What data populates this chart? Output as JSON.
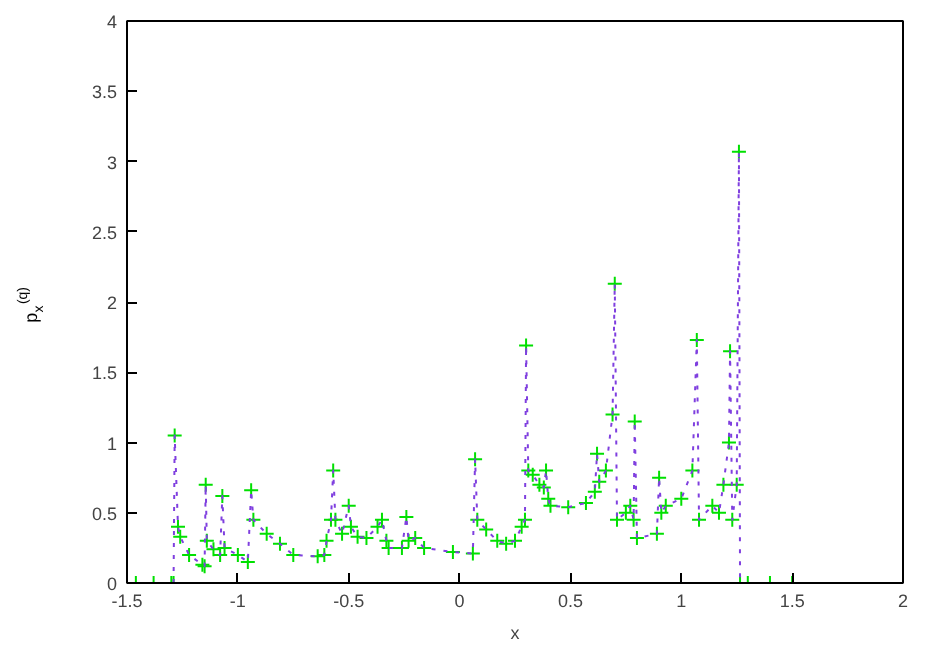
{
  "chart_data": {
    "type": "line",
    "xlabel": "x",
    "ylabel": "p$_{x}$$^{(q)}$",
    "x": [
      -1.46,
      -1.38,
      -1.3,
      -1.29,
      -1.285,
      -1.27,
      -1.26,
      -1.22,
      -1.16,
      -1.15,
      -1.145,
      -1.14,
      -1.11,
      -1.08,
      -1.07,
      -1.06,
      -1.0,
      -0.955,
      -0.94,
      -0.93,
      -0.87,
      -0.81,
      -0.75,
      -0.64,
      -0.61,
      -0.6,
      -0.58,
      -0.57,
      -0.56,
      -0.53,
      -0.5,
      -0.49,
      -0.46,
      -0.42,
      -0.37,
      -0.35,
      -0.33,
      -0.32,
      -0.26,
      -0.24,
      -0.23,
      -0.2,
      -0.16,
      -0.03,
      0.06,
      0.07,
      0.08,
      0.12,
      0.17,
      0.21,
      0.25,
      0.28,
      0.295,
      0.3,
      0.31,
      0.33,
      0.36,
      0.38,
      0.39,
      0.4,
      0.41,
      0.49,
      0.57,
      0.61,
      0.62,
      0.63,
      0.66,
      0.69,
      0.7,
      0.71,
      0.75,
      0.77,
      0.785,
      0.79,
      0.8,
      0.89,
      0.9,
      0.91,
      0.93,
      1.0,
      1.05,
      1.07,
      1.08,
      1.14,
      1.17,
      1.19,
      1.215,
      1.22,
      1.23,
      1.25,
      1.26,
      1.265,
      1.3,
      1.4,
      1.5
    ],
    "series": [
      {
        "color": "#7f3fdf",
        "line_style": "dotted",
        "x": [
          -1.29,
          -1.285,
          -1.27,
          -1.26,
          -1.22,
          -1.16,
          -1.15,
          -1.145,
          -1.14,
          -1.11,
          -1.08,
          -1.07,
          -1.06,
          -1.0,
          -0.955,
          -0.94,
          -0.93,
          -0.87,
          -0.81,
          -0.75,
          -0.64,
          -0.61,
          -0.6,
          -0.58,
          -0.57,
          -0.56,
          -0.53,
          -0.5,
          -0.49,
          -0.46,
          -0.42,
          -0.37,
          -0.35,
          -0.33,
          -0.32,
          -0.26,
          -0.24,
          -0.23,
          -0.2,
          -0.16,
          -0.03,
          0.06,
          0.07,
          0.08,
          0.12,
          0.17,
          0.21,
          0.25,
          0.28,
          0.295,
          0.3,
          0.31,
          0.33,
          0.36,
          0.38,
          0.39,
          0.4,
          0.41,
          0.49,
          0.57,
          0.61,
          0.62,
          0.63,
          0.66,
          0.69,
          0.7,
          0.71,
          0.75,
          0.77,
          0.785,
          0.79,
          0.8,
          0.89,
          0.9,
          0.91,
          0.93,
          1.0,
          1.05,
          1.07,
          1.08,
          1.14,
          1.17,
          1.19,
          1.215,
          1.22,
          1.23,
          1.25,
          1.26,
          1.265
        ],
        "values": [
          0,
          1.05,
          0.4,
          0.33,
          0.2,
          0.13,
          0.12,
          0.7,
          0.3,
          0.24,
          0.2,
          0.62,
          0.25,
          0.2,
          0.15,
          0.66,
          0.45,
          0.35,
          0.28,
          0.2,
          0.19,
          0.2,
          0.3,
          0.45,
          0.8,
          0.45,
          0.35,
          0.55,
          0.4,
          0.33,
          0.32,
          0.4,
          0.45,
          0.3,
          0.25,
          0.25,
          0.47,
          0.3,
          0.32,
          0.25,
          0.22,
          0.21,
          0.88,
          0.45,
          0.38,
          0.3,
          0.28,
          0.3,
          0.4,
          0.45,
          1.69,
          0.8,
          0.77,
          0.7,
          0.68,
          0.8,
          0.6,
          0.55,
          0.54,
          0.57,
          0.65,
          0.92,
          0.72,
          0.8,
          1.2,
          2.13,
          0.45,
          0.5,
          0.55,
          0.45,
          1.15,
          0.32,
          0.35,
          0.75,
          0.5,
          0.55,
          0.6,
          0.8,
          1.73,
          0.45,
          0.55,
          0.5,
          0.7,
          1.0,
          1.65,
          0.45,
          0.7,
          3.07,
          0
        ]
      },
      {
        "type": "scatter",
        "color": "#00e000",
        "marker": "cross",
        "values": [
          0,
          0,
          0,
          0,
          1.05,
          0.4,
          0.33,
          0.2,
          0.13,
          0.12,
          0.7,
          0.3,
          0.24,
          0.2,
          0.62,
          0.25,
          0.2,
          0.15,
          0.66,
          0.45,
          0.35,
          0.28,
          0.2,
          0.19,
          0.2,
          0.3,
          0.45,
          0.8,
          0.45,
          0.35,
          0.55,
          0.4,
          0.33,
          0.32,
          0.4,
          0.45,
          0.3,
          0.25,
          0.25,
          0.47,
          0.3,
          0.32,
          0.25,
          0.22,
          0.21,
          0.88,
          0.45,
          0.38,
          0.3,
          0.28,
          0.3,
          0.4,
          0.45,
          1.69,
          0.8,
          0.77,
          0.7,
          0.68,
          0.8,
          0.6,
          0.55,
          0.54,
          0.57,
          0.65,
          0.92,
          0.72,
          0.8,
          1.2,
          2.13,
          0.45,
          0.5,
          0.55,
          0.45,
          1.15,
          0.32,
          0.35,
          0.75,
          0.5,
          0.55,
          0.6,
          0.8,
          1.73,
          0.45,
          0.55,
          0.5,
          0.7,
          1.0,
          1.65,
          0.45,
          0.7,
          3.07,
          0,
          0,
          0,
          0
        ]
      }
    ],
    "xlim": [
      -1.5,
      2
    ],
    "ylim": [
      0,
      4
    ],
    "xticks": [
      -1.5,
      -1,
      -0.5,
      0,
      0.5,
      1,
      1.5,
      2
    ],
    "yticks": [
      0,
      0.5,
      1,
      1.5,
      2,
      2.5,
      3,
      3.5,
      4
    ],
    "grid": false
  }
}
